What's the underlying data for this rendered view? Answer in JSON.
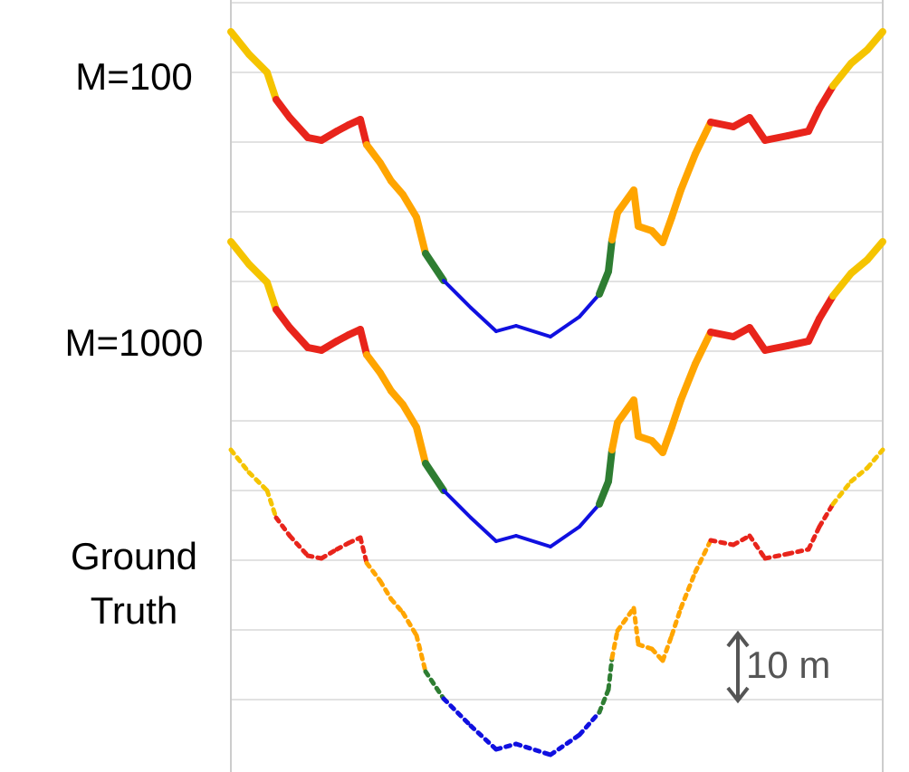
{
  "labels": [
    "M=100",
    "M=1000"
  ],
  "ground_truth_label": [
    "Ground",
    "Truth"
  ],
  "scale_label": "10 m"
}
